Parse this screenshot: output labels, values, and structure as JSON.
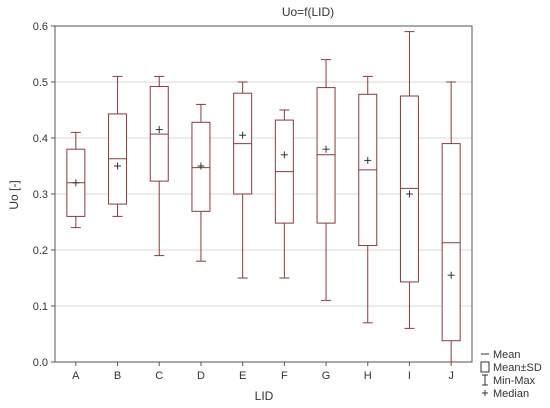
{
  "chart_data": {
    "type": "boxplot",
    "title": "Uo=f(LID)",
    "xlabel": "LID",
    "ylabel": "Uo [-]",
    "ylim": [
      0.0,
      0.6
    ],
    "yticks": [
      "0.0",
      "0.1",
      "0.2",
      "0.3",
      "0.4",
      "0.5",
      "0.6"
    ],
    "grid": "horizontal",
    "legend_placement": "bottom-right",
    "series_color": "#8b3a3a",
    "categories": [
      "A",
      "B",
      "C",
      "D",
      "E",
      "F",
      "G",
      "H",
      "I",
      "J"
    ],
    "boxes": [
      {
        "category": "A",
        "mean": 0.32,
        "median": 0.32,
        "sd_low": 0.26,
        "sd_high": 0.38,
        "min": 0.24,
        "max": 0.41
      },
      {
        "category": "B",
        "mean": 0.35,
        "median": 0.363,
        "sd_low": 0.282,
        "sd_high": 0.443,
        "min": 0.26,
        "max": 0.51
      },
      {
        "category": "C",
        "mean": 0.415,
        "median": 0.407,
        "sd_low": 0.323,
        "sd_high": 0.492,
        "min": 0.19,
        "max": 0.51
      },
      {
        "category": "D",
        "mean": 0.35,
        "median": 0.347,
        "sd_low": 0.269,
        "sd_high": 0.428,
        "min": 0.18,
        "max": 0.46
      },
      {
        "category": "E",
        "mean": 0.405,
        "median": 0.39,
        "sd_low": 0.3,
        "sd_high": 0.48,
        "min": 0.15,
        "max": 0.5
      },
      {
        "category": "F",
        "mean": 0.37,
        "median": 0.34,
        "sd_low": 0.248,
        "sd_high": 0.432,
        "min": 0.15,
        "max": 0.45
      },
      {
        "category": "G",
        "mean": 0.38,
        "median": 0.37,
        "sd_low": 0.248,
        "sd_high": 0.49,
        "min": 0.11,
        "max": 0.54
      },
      {
        "category": "H",
        "mean": 0.36,
        "median": 0.343,
        "sd_low": 0.208,
        "sd_high": 0.478,
        "min": 0.07,
        "max": 0.51
      },
      {
        "category": "I",
        "mean": 0.3,
        "median": 0.31,
        "sd_low": 0.143,
        "sd_high": 0.475,
        "min": 0.06,
        "max": 0.59
      },
      {
        "category": "J",
        "mean": 0.155,
        "median": 0.213,
        "sd_low": 0.038,
        "sd_high": 0.39,
        "min": 0.0,
        "max": 0.5
      }
    ],
    "legend": [
      {
        "symbol": "line",
        "label": "Mean"
      },
      {
        "symbol": "box",
        "label": "Mean±SD"
      },
      {
        "symbol": "whisker",
        "label": "Min-Max"
      },
      {
        "symbol": "plus",
        "label": "Median"
      }
    ]
  }
}
